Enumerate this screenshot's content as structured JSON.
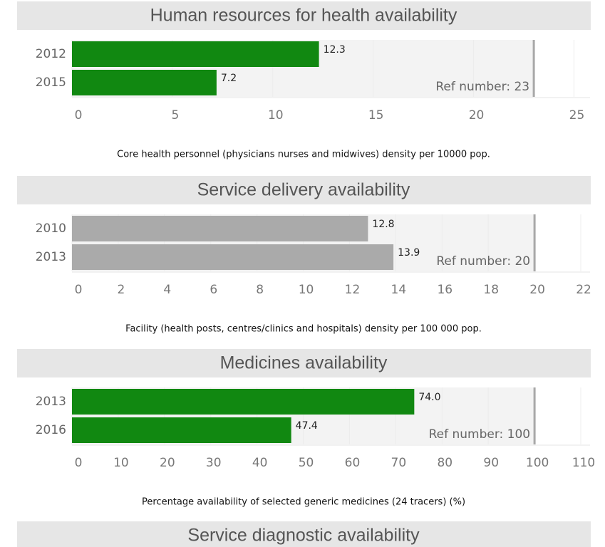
{
  "chart_data": [
    {
      "type": "bar",
      "title": "Human resources for health availability",
      "categories": [
        "2012",
        "2015"
      ],
      "values": [
        12.3,
        7.2
      ],
      "color": "#118811",
      "xlim": [
        0,
        25.8
      ],
      "xticks": [
        0,
        5,
        10,
        15,
        20,
        25
      ],
      "reference": {
        "value": 23,
        "label": "Ref number: 23"
      },
      "caption": "Core health personnel (physicians nurses and midwives) density per 10000 pop."
    },
    {
      "type": "bar",
      "title": "Service delivery availability",
      "categories": [
        "2010",
        "2013"
      ],
      "values": [
        12.8,
        13.9
      ],
      "color": "#aaaaaa",
      "xlim": [
        0,
        22.4
      ],
      "xticks": [
        0,
        2,
        4,
        6,
        8,
        10,
        12,
        14,
        16,
        18,
        20,
        22
      ],
      "reference": {
        "value": 20,
        "label": "Ref number: 20"
      },
      "caption": "Facility (health posts, centres/clinics and hospitals) density per 100 000 pop."
    },
    {
      "type": "bar",
      "title": "Medicines availability",
      "categories": [
        "2013",
        "2016"
      ],
      "values": [
        74.0,
        47.4
      ],
      "value_labels": [
        "74.0",
        "47.4"
      ],
      "color": "#118811",
      "xlim": [
        0,
        112
      ],
      "xticks": [
        0,
        10,
        20,
        30,
        40,
        50,
        60,
        70,
        80,
        90,
        100,
        110
      ],
      "reference": {
        "value": 100,
        "label": "Ref number: 100"
      },
      "caption": "Percentage availability of selected generic medicines (24 tracers) (%)"
    },
    {
      "type": "bar",
      "title": "Service diagnostic availability"
    }
  ]
}
